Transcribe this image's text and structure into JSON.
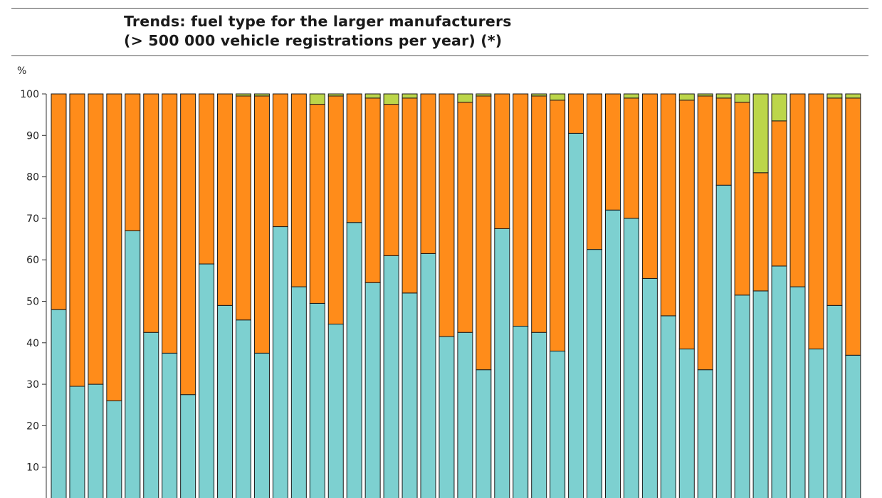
{
  "header": {
    "title_line1": "Trends:  fuel type for the larger manufacturers",
    "title_line2": "(> 500 000 vehicle registrations per year) (*)"
  },
  "chart_data": {
    "type": "bar",
    "stacked": true,
    "title": "Trends:  fuel type for the larger manufacturers (> 500 000 vehicle registrations per year) (*)",
    "ylabel": "%",
    "ylim": [
      0,
      100
    ],
    "yticks": [
      10,
      20,
      30,
      40,
      50,
      60,
      70,
      80,
      90,
      100
    ],
    "grid": false,
    "legend": "none visible",
    "series": [
      {
        "color": "#7dd0d0",
        "values": [
          48,
          29.5,
          30,
          26,
          67,
          42.5,
          37.5,
          27.5,
          59,
          49,
          45.5,
          37.5,
          68,
          53.5,
          49.5,
          44.5,
          69,
          54.5,
          61,
          52,
          61.5,
          41.5,
          42.5,
          33.5,
          67.5,
          44,
          42.5,
          38,
          90.5,
          62.5,
          72,
          70,
          55.5,
          46.5,
          38.5,
          33.5,
          78,
          51.5,
          52.5,
          58.5,
          53.5,
          38.5,
          49,
          37
        ]
      },
      {
        "color": "#ff8c1a",
        "values": [
          52,
          70.5,
          70,
          74,
          33,
          57.5,
          62.5,
          72.5,
          41,
          51,
          54,
          62,
          32,
          46.5,
          48,
          55,
          31,
          44.5,
          36.5,
          47,
          38.5,
          58.5,
          55.5,
          66,
          32.5,
          56,
          57,
          60.5,
          9.5,
          37.5,
          28,
          29,
          44.5,
          53.5,
          60,
          66,
          21,
          46.5,
          28.5,
          35,
          46.5,
          61.5,
          50,
          62
        ]
      },
      {
        "color": "#bcd64a",
        "values": [
          0,
          0,
          0,
          0,
          0,
          0,
          0,
          0,
          0,
          0,
          0.5,
          0.5,
          0,
          0,
          2.5,
          0.5,
          0,
          1,
          2.5,
          1,
          0,
          0,
          2,
          0.5,
          0,
          0,
          0.5,
          1.5,
          0,
          0,
          0,
          1,
          0,
          0,
          1.5,
          0.5,
          1,
          2,
          19,
          6.5,
          0,
          0,
          1,
          1
        ]
      }
    ]
  }
}
